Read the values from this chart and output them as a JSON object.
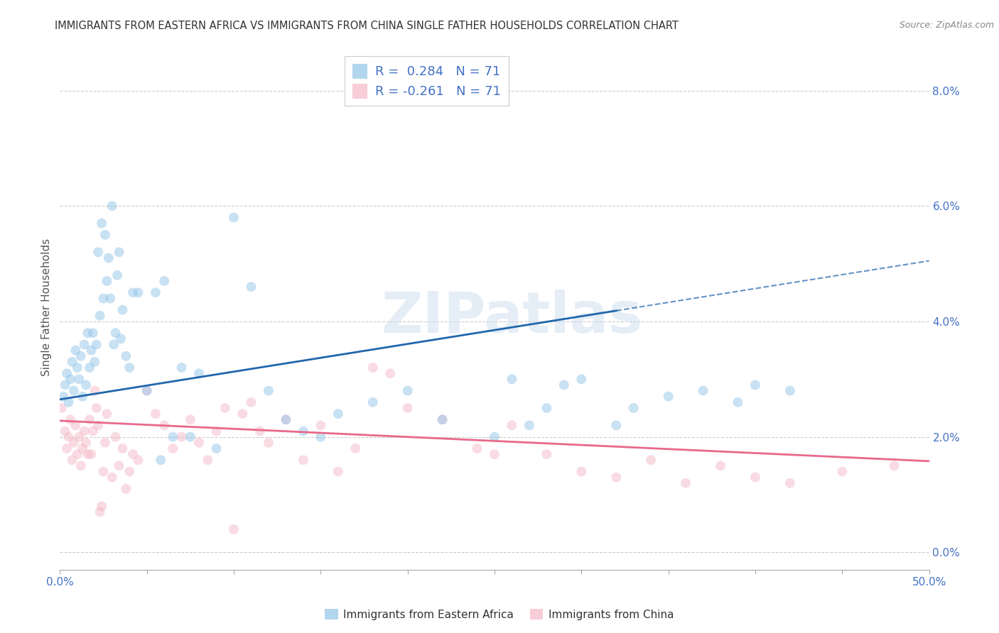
{
  "title": "IMMIGRANTS FROM EASTERN AFRICA VS IMMIGRANTS FROM CHINA SINGLE FATHER HOUSEHOLDS CORRELATION CHART",
  "source": "Source: ZipAtlas.com",
  "ylabel": "Single Father Households",
  "right_yticks": [
    "0.0%",
    "2.0%",
    "4.0%",
    "6.0%",
    "8.0%"
  ],
  "right_ytick_vals": [
    0.0,
    2.0,
    4.0,
    6.0,
    8.0
  ],
  "xlim": [
    0.0,
    50.0
  ],
  "ylim": [
    -0.3,
    8.8
  ],
  "legend_blue_label": "R =  0.284   N = 71",
  "legend_pink_label": "R = -0.261   N = 71",
  "blue_color": "#92c5e8",
  "pink_color": "#f4b8c8",
  "blue_line_color": "#2166ac",
  "pink_line_color": "#e8698a",
  "watermark": "ZIPatlas",
  "blue_scatter": [
    [
      0.2,
      2.7
    ],
    [
      0.3,
      2.9
    ],
    [
      0.4,
      3.1
    ],
    [
      0.5,
      2.6
    ],
    [
      0.6,
      3.0
    ],
    [
      0.7,
      3.3
    ],
    [
      0.8,
      2.8
    ],
    [
      0.9,
      3.5
    ],
    [
      1.0,
      3.2
    ],
    [
      1.1,
      3.0
    ],
    [
      1.2,
      3.4
    ],
    [
      1.3,
      2.7
    ],
    [
      1.4,
      3.6
    ],
    [
      1.5,
      2.9
    ],
    [
      1.6,
      3.8
    ],
    [
      1.7,
      3.2
    ],
    [
      1.8,
      3.5
    ],
    [
      1.9,
      3.8
    ],
    [
      2.0,
      3.3
    ],
    [
      2.1,
      3.6
    ],
    [
      2.2,
      5.2
    ],
    [
      2.3,
      4.1
    ],
    [
      2.4,
      5.7
    ],
    [
      2.5,
      4.4
    ],
    [
      2.6,
      5.5
    ],
    [
      2.7,
      4.7
    ],
    [
      2.8,
      5.1
    ],
    [
      2.9,
      4.4
    ],
    [
      3.0,
      6.0
    ],
    [
      3.1,
      3.6
    ],
    [
      3.2,
      3.8
    ],
    [
      3.3,
      4.8
    ],
    [
      3.4,
      5.2
    ],
    [
      3.5,
      3.7
    ],
    [
      3.6,
      4.2
    ],
    [
      3.8,
      3.4
    ],
    [
      4.0,
      3.2
    ],
    [
      4.2,
      4.5
    ],
    [
      4.5,
      4.5
    ],
    [
      5.0,
      2.8
    ],
    [
      5.5,
      4.5
    ],
    [
      5.8,
      1.6
    ],
    [
      6.0,
      4.7
    ],
    [
      6.5,
      2.0
    ],
    [
      7.0,
      3.2
    ],
    [
      7.5,
      2.0
    ],
    [
      8.0,
      3.1
    ],
    [
      9.0,
      1.8
    ],
    [
      10.0,
      5.8
    ],
    [
      11.0,
      4.6
    ],
    [
      12.0,
      2.8
    ],
    [
      13.0,
      2.3
    ],
    [
      14.0,
      2.1
    ],
    [
      15.0,
      2.0
    ],
    [
      16.0,
      2.4
    ],
    [
      18.0,
      2.6
    ],
    [
      20.0,
      2.8
    ],
    [
      22.0,
      2.3
    ],
    [
      25.0,
      2.0
    ],
    [
      26.0,
      3.0
    ],
    [
      27.0,
      2.2
    ],
    [
      28.0,
      2.5
    ],
    [
      29.0,
      2.9
    ],
    [
      30.0,
      3.0
    ],
    [
      32.0,
      2.2
    ],
    [
      33.0,
      2.5
    ],
    [
      35.0,
      2.7
    ],
    [
      37.0,
      2.8
    ],
    [
      39.0,
      2.6
    ],
    [
      40.0,
      2.9
    ],
    [
      42.0,
      2.8
    ]
  ],
  "pink_scatter": [
    [
      0.1,
      2.5
    ],
    [
      0.3,
      2.1
    ],
    [
      0.4,
      1.8
    ],
    [
      0.5,
      2.0
    ],
    [
      0.6,
      2.3
    ],
    [
      0.7,
      1.6
    ],
    [
      0.8,
      1.9
    ],
    [
      0.9,
      2.2
    ],
    [
      1.0,
      1.7
    ],
    [
      1.1,
      2.0
    ],
    [
      1.2,
      1.5
    ],
    [
      1.3,
      1.8
    ],
    [
      1.4,
      2.1
    ],
    [
      1.5,
      1.9
    ],
    [
      1.6,
      1.7
    ],
    [
      1.7,
      2.3
    ],
    [
      1.8,
      1.7
    ],
    [
      1.9,
      2.1
    ],
    [
      2.0,
      2.8
    ],
    [
      2.1,
      2.5
    ],
    [
      2.2,
      2.2
    ],
    [
      2.3,
      0.7
    ],
    [
      2.4,
      0.8
    ],
    [
      2.5,
      1.4
    ],
    [
      2.6,
      1.9
    ],
    [
      2.7,
      2.4
    ],
    [
      3.0,
      1.3
    ],
    [
      3.2,
      2.0
    ],
    [
      3.4,
      1.5
    ],
    [
      3.6,
      1.8
    ],
    [
      3.8,
      1.1
    ],
    [
      4.0,
      1.4
    ],
    [
      4.2,
      1.7
    ],
    [
      4.5,
      1.6
    ],
    [
      5.0,
      2.8
    ],
    [
      5.5,
      2.4
    ],
    [
      6.0,
      2.2
    ],
    [
      6.5,
      1.8
    ],
    [
      7.0,
      2.0
    ],
    [
      7.5,
      2.3
    ],
    [
      8.0,
      1.9
    ],
    [
      8.5,
      1.6
    ],
    [
      9.0,
      2.1
    ],
    [
      9.5,
      2.5
    ],
    [
      10.0,
      0.4
    ],
    [
      10.5,
      2.4
    ],
    [
      11.0,
      2.6
    ],
    [
      11.5,
      2.1
    ],
    [
      12.0,
      1.9
    ],
    [
      13.0,
      2.3
    ],
    [
      14.0,
      1.6
    ],
    [
      15.0,
      2.2
    ],
    [
      16.0,
      1.4
    ],
    [
      17.0,
      1.8
    ],
    [
      18.0,
      3.2
    ],
    [
      19.0,
      3.1
    ],
    [
      20.0,
      2.5
    ],
    [
      22.0,
      2.3
    ],
    [
      24.0,
      1.8
    ],
    [
      25.0,
      1.7
    ],
    [
      26.0,
      2.2
    ],
    [
      28.0,
      1.7
    ],
    [
      30.0,
      1.4
    ],
    [
      32.0,
      1.3
    ],
    [
      34.0,
      1.6
    ],
    [
      36.0,
      1.2
    ],
    [
      38.0,
      1.5
    ],
    [
      40.0,
      1.3
    ],
    [
      42.0,
      1.2
    ],
    [
      45.0,
      1.4
    ],
    [
      48.0,
      1.5
    ]
  ],
  "blue_line": [
    [
      0.0,
      2.65
    ],
    [
      50.0,
      5.05
    ]
  ],
  "blue_solid_end": 32.0,
  "pink_line": [
    [
      0.0,
      2.28
    ],
    [
      50.0,
      1.58
    ]
  ],
  "grid_color": "#cccccc",
  "title_fontsize": 10.5,
  "axis_color": "#4472c4",
  "tick_color": "#888888",
  "scatter_size": 100,
  "scatter_alpha": 0.5,
  "xtick_positions": [
    0,
    5,
    10,
    15,
    20,
    25,
    30,
    35,
    40,
    45,
    50
  ]
}
